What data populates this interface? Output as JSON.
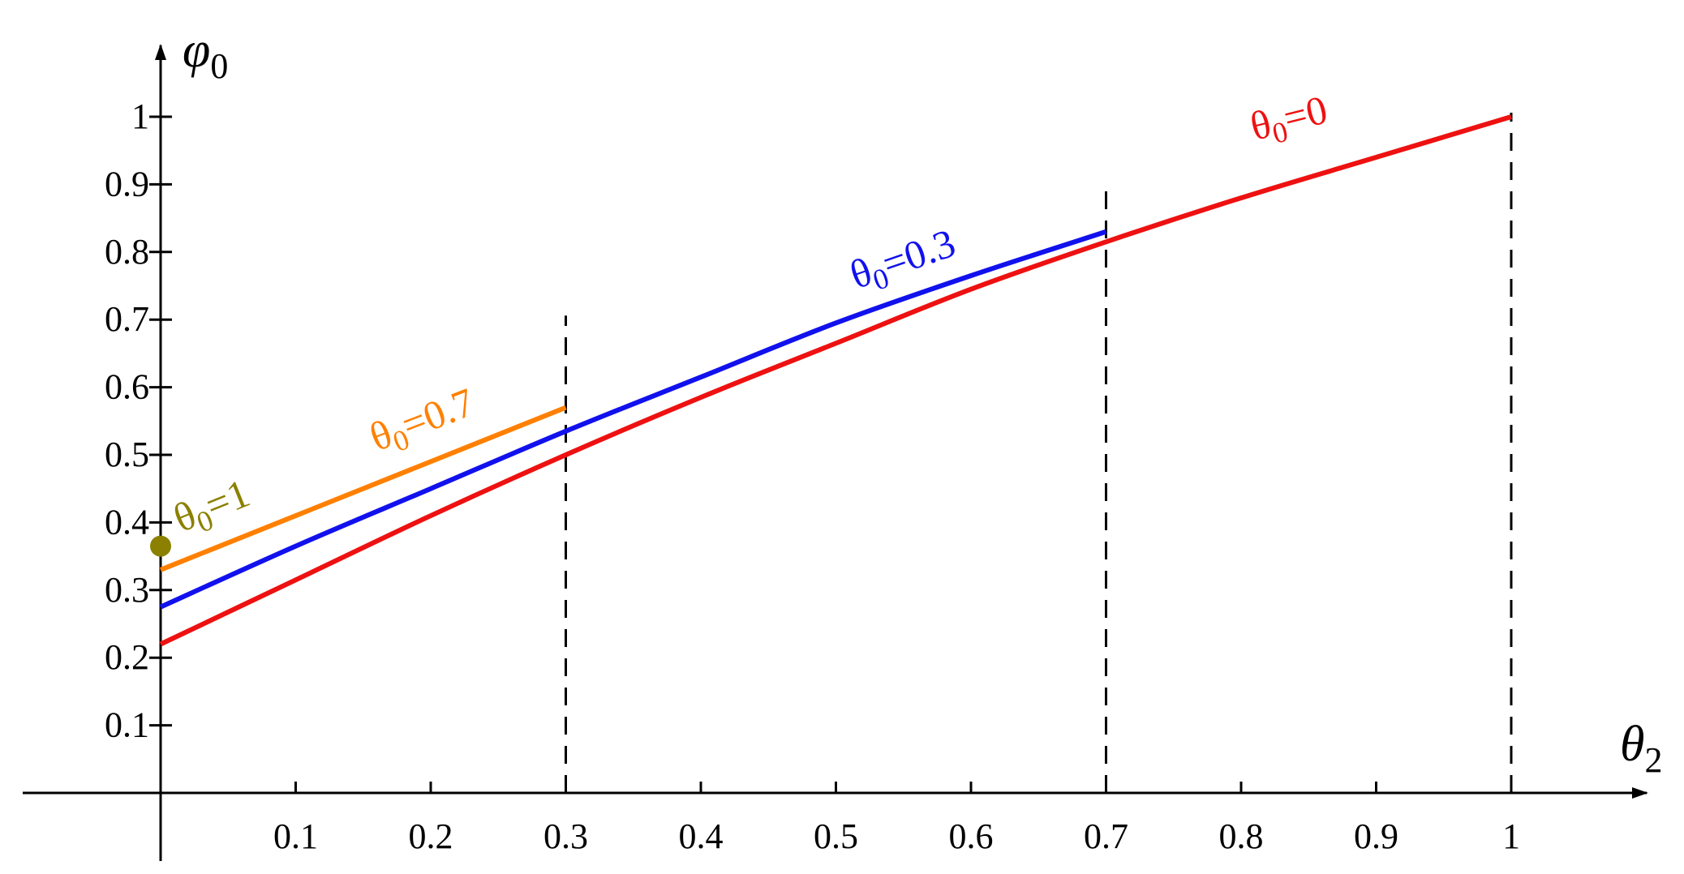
{
  "chart_data": {
    "type": "line",
    "xlabel": {
      "symbol": "θ",
      "sub": "2"
    },
    "ylabel": {
      "symbol": "φ",
      "sub": "0"
    },
    "xlim": [
      0,
      1
    ],
    "ylim": [
      0,
      1
    ],
    "xticks": [
      "0.1",
      "0.2",
      "0.3",
      "0.4",
      "0.5",
      "0.6",
      "0.7",
      "0.8",
      "0.9",
      "1"
    ],
    "yticks": [
      "0.1",
      "0.2",
      "0.3",
      "0.4",
      "0.5",
      "0.6",
      "0.7",
      "0.8",
      "0.9",
      "1"
    ],
    "vertical_dashed_lines": [
      {
        "x": 0.3,
        "y_top": 0.7
      },
      {
        "x": 0.7,
        "y_top": 0.9
      },
      {
        "x": 1.0,
        "y_top": 1.0
      }
    ],
    "series": [
      {
        "name": "θ0=0",
        "label": {
          "symbol": "θ",
          "sub": "0",
          "rest": "=0"
        },
        "color": "#ee1111",
        "x": [
          0,
          0.1,
          0.2,
          0.3,
          0.4,
          0.5,
          0.6,
          0.7,
          0.8,
          0.9,
          1.0
        ],
        "y": [
          0.22,
          0.315,
          0.41,
          0.5,
          0.585,
          0.665,
          0.745,
          0.815,
          0.88,
          0.94,
          1.0
        ]
      },
      {
        "name": "θ0=0.3",
        "label": {
          "symbol": "θ",
          "sub": "0",
          "rest": "=0.3"
        },
        "color": "#1111ee",
        "x": [
          0,
          0.1,
          0.2,
          0.3,
          0.4,
          0.5,
          0.6,
          0.7
        ],
        "y": [
          0.275,
          0.365,
          0.45,
          0.535,
          0.615,
          0.695,
          0.765,
          0.83
        ]
      },
      {
        "name": "θ0=0.7",
        "label": {
          "symbol": "θ",
          "sub": "0",
          "rest": "=0.7"
        },
        "color": "#ff8000",
        "x": [
          0,
          0.3
        ],
        "y": [
          0.33,
          0.57
        ]
      },
      {
        "name": "θ0=1",
        "label": {
          "symbol": "θ",
          "sub": "0",
          "rest": "=1"
        },
        "color": "#8b8000",
        "x": [
          0
        ],
        "y": [
          0.365
        ],
        "marker": "point"
      }
    ]
  }
}
